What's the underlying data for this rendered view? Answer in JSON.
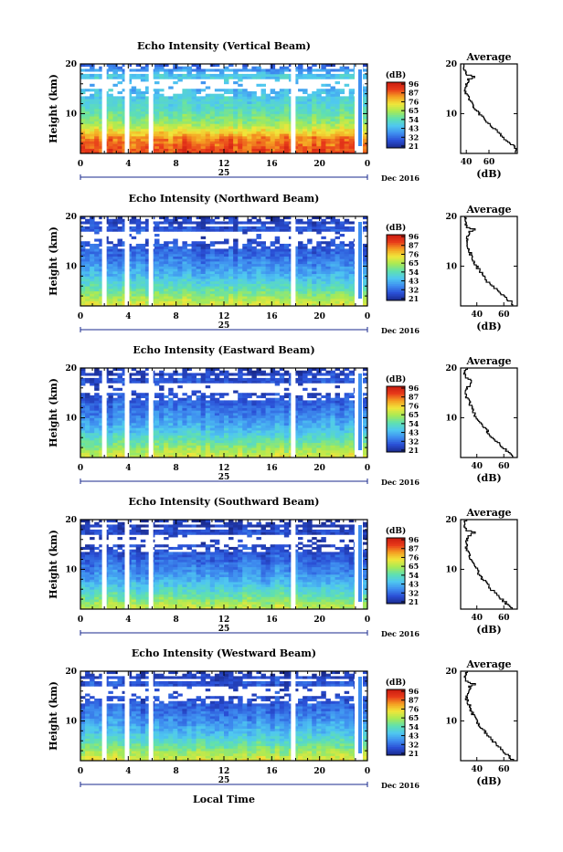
{
  "colors": {
    "nodata": "#ffffff",
    "frame": "#000000",
    "navy": "#1a2a8c"
  },
  "colormap": [
    "#1a2a8c",
    "#2a4fd6",
    "#3f8ff0",
    "#4fc8f0",
    "#5fe0b0",
    "#a8ea55",
    "#f0e63a",
    "#f5a022",
    "#e83a1a",
    "#c81a10"
  ],
  "colorbar": {
    "unit": "(dB)",
    "ticks": [
      "96",
      "87",
      "76",
      "65",
      "54",
      "43",
      "32",
      "21"
    ]
  },
  "x_axis": {
    "ticks": [
      "0",
      "4",
      "8",
      "12",
      "16",
      "20",
      "0"
    ],
    "day_label": "25",
    "date_label": "Dec 2016"
  },
  "y_axis": {
    "label": "Height (km)",
    "ticks": [
      "20",
      "10"
    ]
  },
  "bottom_xlabel": "Local Time",
  "average_panel": {
    "title": "Average",
    "xlabel": "(dB)",
    "yticks": [
      "20",
      "10"
    ]
  },
  "chart_data": [
    {
      "type": "heatmap",
      "title": "Echo Intensity (Vertical Beam)",
      "x_range_hours": [
        0,
        24
      ],
      "y_range_km": [
        2,
        20
      ],
      "c_range_db": [
        21,
        96
      ],
      "gap_hours": [
        2.0,
        3.9,
        5.9,
        17.8
      ],
      "intensity_profile_db": [
        {
          "h": 2,
          "v": 88
        },
        {
          "h": 5,
          "v": 82
        },
        {
          "h": 8,
          "v": 62
        },
        {
          "h": 11,
          "v": 52
        },
        {
          "h": 14,
          "v": 46
        },
        {
          "h": 16,
          "v": 42
        },
        {
          "h": 17.5,
          "v": 48
        },
        {
          "h": 20,
          "v": 30
        }
      ],
      "average": {
        "xlabel": "(dB)",
        "xticks": [
          "40",
          "60"
        ],
        "xlim": [
          35,
          85
        ],
        "ylim": [
          2,
          20
        ],
        "profile": [
          {
            "h": 2,
            "v": 82
          },
          {
            "h": 3,
            "v": 84
          },
          {
            "h": 4,
            "v": 80
          },
          {
            "h": 5,
            "v": 74
          },
          {
            "h": 6,
            "v": 70
          },
          {
            "h": 7,
            "v": 65
          },
          {
            "h": 8,
            "v": 60
          },
          {
            "h": 9,
            "v": 56
          },
          {
            "h": 10,
            "v": 52
          },
          {
            "h": 11,
            "v": 48
          },
          {
            "h": 12,
            "v": 45
          },
          {
            "h": 13,
            "v": 43
          },
          {
            "h": 14,
            "v": 40
          },
          {
            "h": 15,
            "v": 39
          },
          {
            "h": 16,
            "v": 40
          },
          {
            "h": 17,
            "v": 42
          },
          {
            "h": 17.5,
            "v": 48
          },
          {
            "h": 18,
            "v": 41
          },
          {
            "h": 19,
            "v": 38
          },
          {
            "h": 20,
            "v": 38
          }
        ]
      }
    },
    {
      "type": "heatmap",
      "title": "Echo Intensity (Northward Beam)",
      "x_range_hours": [
        0,
        24
      ],
      "y_range_km": [
        2,
        20
      ],
      "c_range_db": [
        21,
        96
      ],
      "gap_hours": [
        2.0,
        3.9,
        5.9,
        17.8
      ],
      "intensity_profile_db": [
        {
          "h": 2,
          "v": 70
        },
        {
          "h": 5,
          "v": 56
        },
        {
          "h": 8,
          "v": 44
        },
        {
          "h": 11,
          "v": 36
        },
        {
          "h": 14,
          "v": 30
        },
        {
          "h": 16,
          "v": 27
        },
        {
          "h": 17.5,
          "v": 30
        },
        {
          "h": 20,
          "v": 24
        }
      ],
      "average": {
        "xlabel": "(dB)",
        "xticks": [
          "40",
          "60"
        ],
        "xlim": [
          28,
          70
        ],
        "ylim": [
          2,
          20
        ],
        "profile": [
          {
            "h": 2,
            "v": 68
          },
          {
            "h": 3,
            "v": 65
          },
          {
            "h": 4,
            "v": 60
          },
          {
            "h": 5,
            "v": 56
          },
          {
            "h": 6,
            "v": 52
          },
          {
            "h": 7,
            "v": 48
          },
          {
            "h": 8,
            "v": 46
          },
          {
            "h": 9,
            "v": 43
          },
          {
            "h": 10,
            "v": 40
          },
          {
            "h": 11,
            "v": 38
          },
          {
            "h": 12,
            "v": 36
          },
          {
            "h": 13,
            "v": 35
          },
          {
            "h": 14,
            "v": 33
          },
          {
            "h": 15,
            "v": 32
          },
          {
            "h": 16,
            "v": 33
          },
          {
            "h": 17,
            "v": 35
          },
          {
            "h": 17.5,
            "v": 38
          },
          {
            "h": 18,
            "v": 33
          },
          {
            "h": 19,
            "v": 31
          },
          {
            "h": 20,
            "v": 32
          }
        ]
      }
    },
    {
      "type": "heatmap",
      "title": "Echo Intensity (Eastward Beam)",
      "x_range_hours": [
        0,
        24
      ],
      "y_range_km": [
        2,
        20
      ],
      "c_range_db": [
        21,
        96
      ],
      "gap_hours": [
        2.0,
        3.9,
        5.9,
        17.8
      ],
      "intensity_profile_db": [
        {
          "h": 2,
          "v": 70
        },
        {
          "h": 5,
          "v": 56
        },
        {
          "h": 8,
          "v": 44
        },
        {
          "h": 11,
          "v": 36
        },
        {
          "h": 14,
          "v": 30
        },
        {
          "h": 16,
          "v": 27
        },
        {
          "h": 17.5,
          "v": 30
        },
        {
          "h": 20,
          "v": 24
        }
      ],
      "average": {
        "xlabel": "(dB)",
        "xticks": [
          "40",
          "60"
        ],
        "xlim": [
          28,
          70
        ],
        "ylim": [
          2,
          20
        ],
        "profile": [
          {
            "h": 2,
            "v": 68
          },
          {
            "h": 3,
            "v": 64
          },
          {
            "h": 4,
            "v": 60
          },
          {
            "h": 5,
            "v": 56
          },
          {
            "h": 6,
            "v": 52
          },
          {
            "h": 7,
            "v": 49
          },
          {
            "h": 8,
            "v": 46
          },
          {
            "h": 9,
            "v": 43
          },
          {
            "h": 10,
            "v": 40
          },
          {
            "h": 11,
            "v": 38
          },
          {
            "h": 12,
            "v": 36
          },
          {
            "h": 13,
            "v": 35
          },
          {
            "h": 14,
            "v": 33
          },
          {
            "h": 15,
            "v": 32
          },
          {
            "h": 16,
            "v": 33
          },
          {
            "h": 17,
            "v": 35
          },
          {
            "h": 17.5,
            "v": 37
          },
          {
            "h": 18,
            "v": 33
          },
          {
            "h": 19,
            "v": 31
          },
          {
            "h": 20,
            "v": 32
          }
        ]
      }
    },
    {
      "type": "heatmap",
      "title": "Echo Intensity (Southward Beam)",
      "x_range_hours": [
        0,
        24
      ],
      "y_range_km": [
        2,
        20
      ],
      "c_range_db": [
        21,
        96
      ],
      "gap_hours": [
        2.0,
        3.9,
        5.9,
        17.8
      ],
      "intensity_profile_db": [
        {
          "h": 2,
          "v": 68
        },
        {
          "h": 5,
          "v": 54
        },
        {
          "h": 8,
          "v": 42
        },
        {
          "h": 11,
          "v": 35
        },
        {
          "h": 14,
          "v": 29
        },
        {
          "h": 16,
          "v": 26
        },
        {
          "h": 17.5,
          "v": 29
        },
        {
          "h": 20,
          "v": 23
        }
      ],
      "average": {
        "xlabel": "(dB)",
        "xticks": [
          "40",
          "60"
        ],
        "xlim": [
          28,
          70
        ],
        "ylim": [
          2,
          20
        ],
        "profile": [
          {
            "h": 2,
            "v": 67
          },
          {
            "h": 3,
            "v": 63
          },
          {
            "h": 4,
            "v": 59
          },
          {
            "h": 5,
            "v": 55
          },
          {
            "h": 6,
            "v": 51
          },
          {
            "h": 7,
            "v": 48
          },
          {
            "h": 8,
            "v": 45
          },
          {
            "h": 9,
            "v": 42
          },
          {
            "h": 10,
            "v": 40
          },
          {
            "h": 11,
            "v": 38
          },
          {
            "h": 12,
            "v": 36
          },
          {
            "h": 13,
            "v": 34
          },
          {
            "h": 14,
            "v": 33
          },
          {
            "h": 15,
            "v": 32
          },
          {
            "h": 16,
            "v": 33
          },
          {
            "h": 17,
            "v": 35
          },
          {
            "h": 17.5,
            "v": 38
          },
          {
            "h": 18,
            "v": 33
          },
          {
            "h": 19,
            "v": 31
          },
          {
            "h": 20,
            "v": 32
          }
        ]
      }
    },
    {
      "type": "heatmap",
      "title": "Echo Intensity (Westward Beam)",
      "x_range_hours": [
        0,
        24
      ],
      "y_range_km": [
        2,
        20
      ],
      "c_range_db": [
        21,
        96
      ],
      "gap_hours": [
        2.0,
        3.9,
        5.9,
        17.8
      ],
      "intensity_profile_db": [
        {
          "h": 2,
          "v": 70
        },
        {
          "h": 5,
          "v": 56
        },
        {
          "h": 8,
          "v": 44
        },
        {
          "h": 11,
          "v": 36
        },
        {
          "h": 14,
          "v": 30
        },
        {
          "h": 16,
          "v": 27
        },
        {
          "h": 17.5,
          "v": 30
        },
        {
          "h": 20,
          "v": 24
        }
      ],
      "average": {
        "xlabel": "(dB)",
        "xticks": [
          "40",
          "60"
        ],
        "xlim": [
          28,
          70
        ],
        "ylim": [
          2,
          20
        ],
        "profile": [
          {
            "h": 2,
            "v": 68
          },
          {
            "h": 3,
            "v": 64
          },
          {
            "h": 4,
            "v": 60
          },
          {
            "h": 5,
            "v": 56
          },
          {
            "h": 6,
            "v": 52
          },
          {
            "h": 7,
            "v": 49
          },
          {
            "h": 8,
            "v": 46
          },
          {
            "h": 9,
            "v": 43
          },
          {
            "h": 10,
            "v": 40
          },
          {
            "h": 11,
            "v": 38
          },
          {
            "h": 12,
            "v": 36
          },
          {
            "h": 13,
            "v": 35
          },
          {
            "h": 14,
            "v": 33
          },
          {
            "h": 15,
            "v": 32
          },
          {
            "h": 16,
            "v": 33
          },
          {
            "h": 17,
            "v": 35
          },
          {
            "h": 17.5,
            "v": 38
          },
          {
            "h": 18,
            "v": 33
          },
          {
            "h": 19,
            "v": 31
          },
          {
            "h": 20,
            "v": 32
          }
        ]
      }
    }
  ]
}
